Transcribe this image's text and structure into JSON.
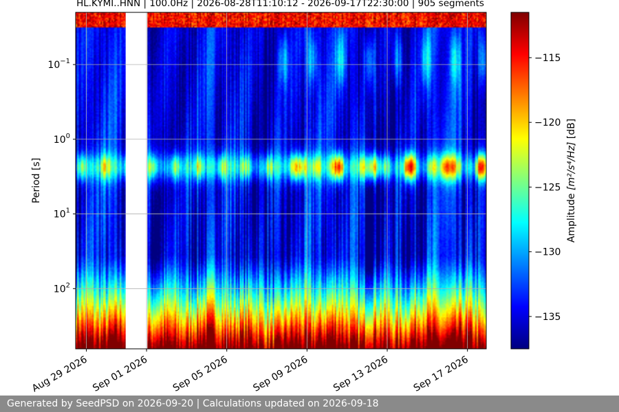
{
  "chart_data": {
    "type": "heatmap",
    "title": "HL.KYMI..HNN | 100.0Hz | 2026-08-28T11:10:12 - 2026-09-17T22:30:00 | 905 segments",
    "xlabel": "",
    "ylabel": "Period [s]",
    "y_scale": "log",
    "y_inverted": true,
    "ylim": [
      0.02,
      640
    ],
    "yticks": [
      {
        "value": 0.1,
        "label_base": "10",
        "label_exp": "−1"
      },
      {
        "value": 1,
        "label_base": "10",
        "label_exp": "0"
      },
      {
        "value": 10,
        "label_base": "10",
        "label_exp": "1"
      },
      {
        "value": 100,
        "label_base": "10",
        "label_exp": "2"
      }
    ],
    "x_start": "2026-08-28T11:10:12",
    "x_end": "2026-09-17T22:30:00",
    "xticks": [
      {
        "date": "2026-08-29",
        "label": "Aug 29 2026"
      },
      {
        "date": "2026-09-01",
        "label": "Sep 01 2026"
      },
      {
        "date": "2026-09-05",
        "label": "Sep 05 2026"
      },
      {
        "date": "2026-09-09",
        "label": "Sep 09 2026"
      },
      {
        "date": "2026-09-13",
        "label": "Sep 13 2026"
      },
      {
        "date": "2026-09-17",
        "label": "Sep 17 2026"
      }
    ],
    "grid": true,
    "data_gaps": [
      {
        "start": "2026-08-30T23:00:00",
        "end": "2026-09-01T01:00:00"
      }
    ],
    "colormap": "jet",
    "colorbar": {
      "label": "Amplitude [m²/s⁴/Hz] [dB]",
      "label_prefix": "Amplitude ",
      "label_unit": "m²/s⁴/Hz",
      "label_suffix": " [dB]",
      "range": [
        -137.5,
        -111.5
      ],
      "ticks": [
        {
          "value": -115,
          "label": "−115"
        },
        {
          "value": -120,
          "label": "−120"
        },
        {
          "value": -125,
          "label": "−125"
        },
        {
          "value": -130,
          "label": "−130"
        },
        {
          "value": -135,
          "label": "−135"
        }
      ]
    }
  },
  "footer": {
    "text": "Generated by SeedPSD on 2026-09-20 | Calculations updated on 2026-09-18"
  }
}
